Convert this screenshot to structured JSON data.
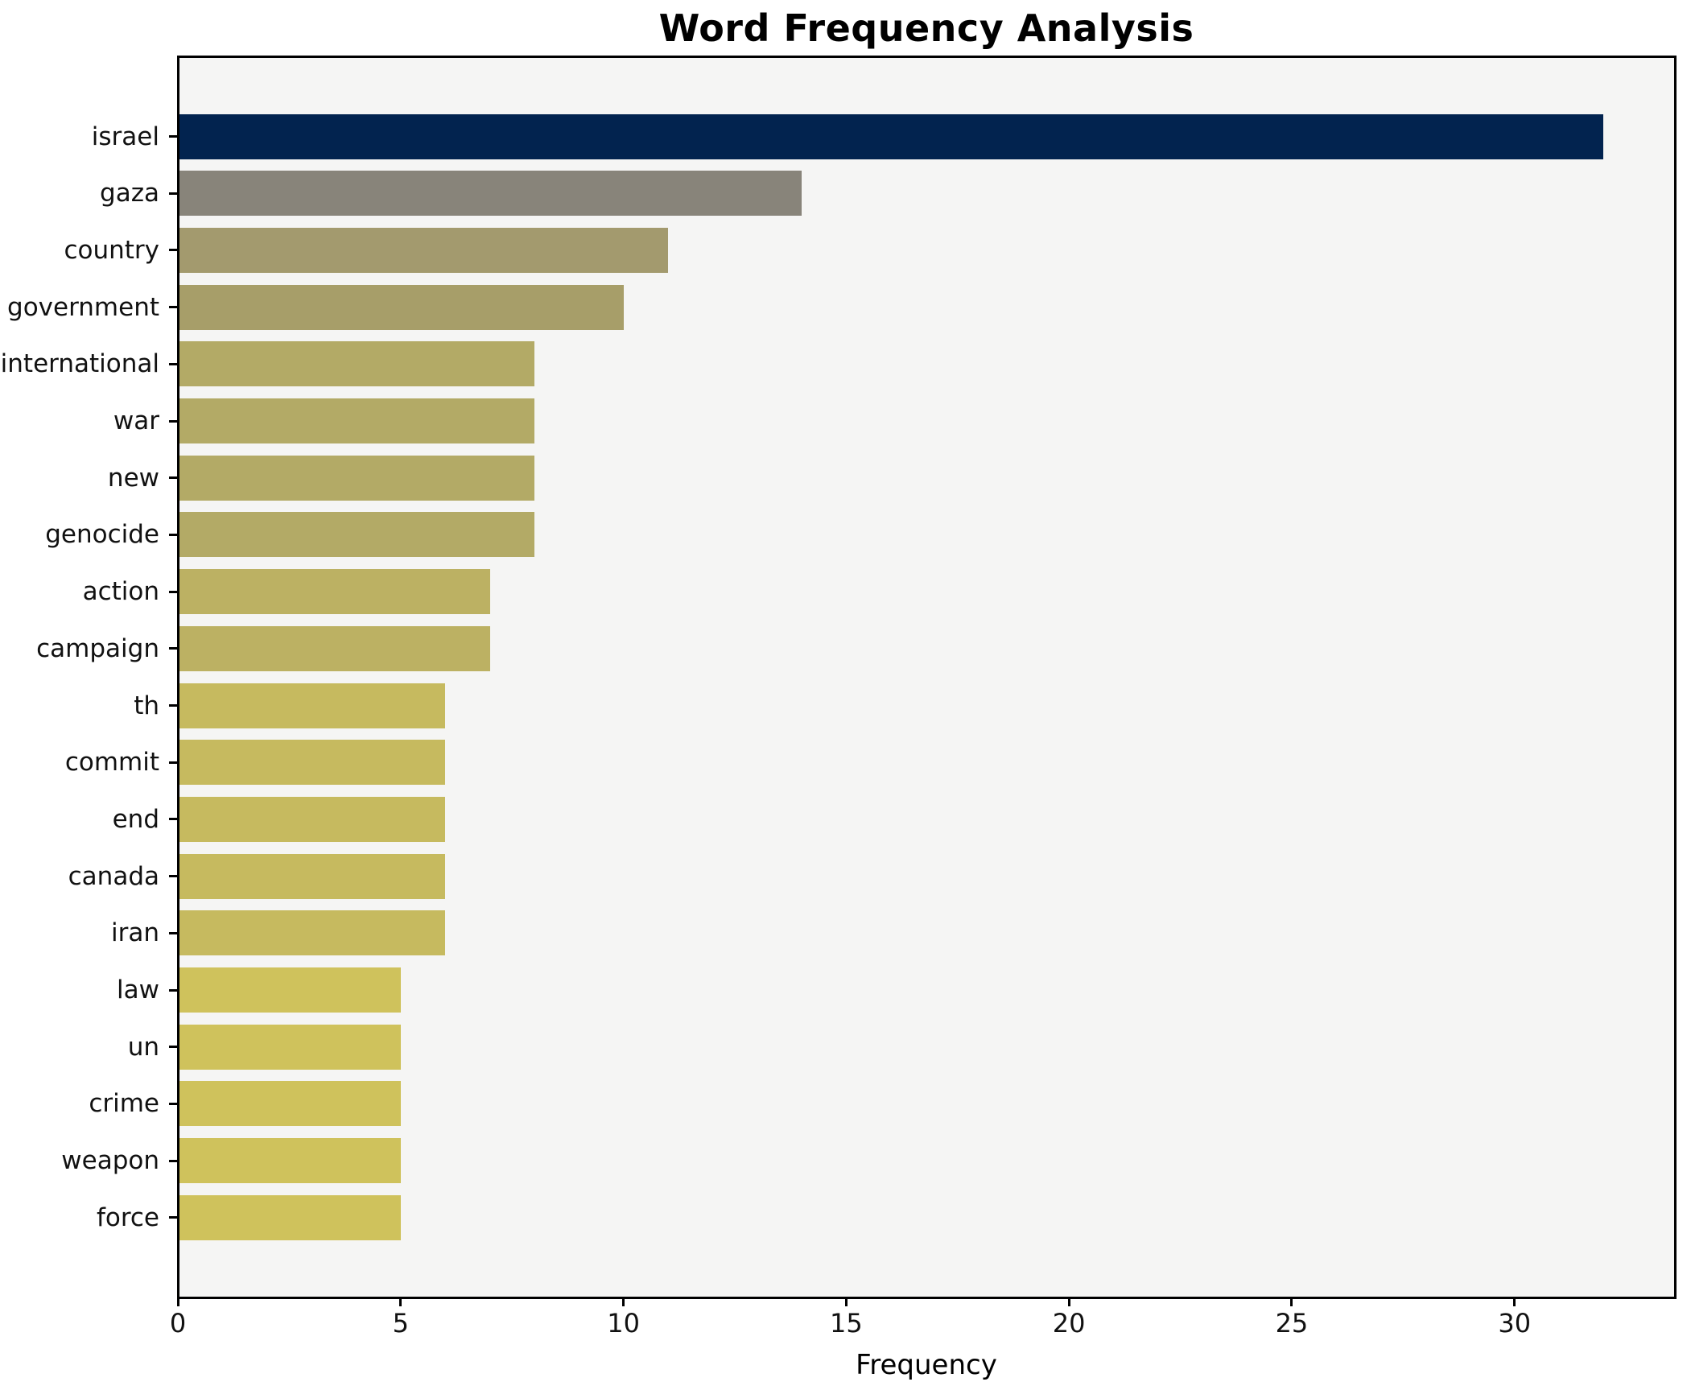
{
  "title": "Word Frequency Analysis",
  "chart_data": {
    "type": "bar",
    "orientation": "horizontal",
    "title": "Word Frequency Analysis",
    "xlabel": "Frequency",
    "ylabel": "",
    "categories": [
      "israel",
      "gaza",
      "country",
      "government",
      "international",
      "war",
      "new",
      "genocide",
      "action",
      "campaign",
      "th",
      "commit",
      "end",
      "canada",
      "iran",
      "law",
      "un",
      "crime",
      "weapon",
      "force"
    ],
    "values": [
      32,
      14,
      11,
      10,
      8,
      8,
      8,
      8,
      7,
      7,
      6,
      6,
      6,
      6,
      6,
      5,
      5,
      5,
      5,
      5
    ],
    "bar_colors": [
      "#02234f",
      "#88847a",
      "#a39a6e",
      "#a79e69",
      "#b3aa66",
      "#b3aa66",
      "#b3aa66",
      "#b3aa66",
      "#bcb163",
      "#bcb163",
      "#c6ba5f",
      "#c6ba5f",
      "#c6ba5f",
      "#c6ba5f",
      "#c6ba5f",
      "#cfc25c",
      "#cfc25c",
      "#cfc25c",
      "#cfc25c",
      "#cfc25c"
    ],
    "xticks": [
      0,
      5,
      10,
      15,
      20,
      25,
      30
    ],
    "xlim": [
      0,
      33.6
    ],
    "grid": false,
    "legend": null,
    "plot_bg": "#f5f5f4",
    "figure_bg": "#ffffff",
    "spine_color": "#000000"
  }
}
